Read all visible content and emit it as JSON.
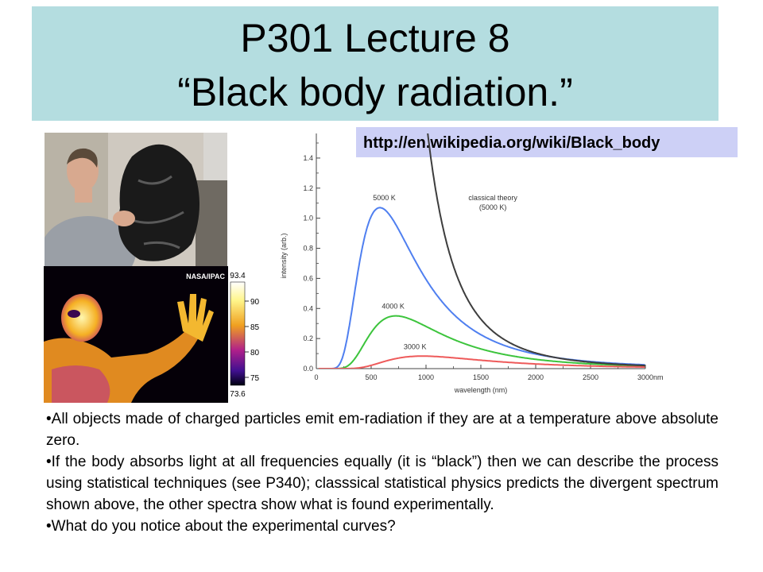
{
  "slide": {
    "title_line1": "P301 Lecture 8",
    "title_line2": "“Black body radiation.”",
    "source_url": "http://en.wikipedia.org/wiki/Black_body",
    "bullets": [
      "•All objects made of charged particles emit em-radiation if they are at a temperature above absolute zero.",
      "•If the body absorbs light at all frequencies equally (it is “black”) then we can describe the process using statistical techniques (see P340); classsical statistical physics predicts the divergent spectrum shown above, the other spectra show what is found experimentally.",
      "•What do you notice about the experimental curves?"
    ]
  },
  "images": {
    "photo_caption": "NASA/IPAC",
    "scale_max": "93.4",
    "scale_min": "73.6",
    "scale_ticks": [
      "90",
      "85",
      "80",
      "75"
    ]
  },
  "chart_data": {
    "type": "line",
    "xlabel": "wavelength (nm)",
    "ylabel": "intensity (arb.)",
    "xlim": [
      0,
      3000
    ],
    "ylim": [
      0,
      1.5
    ],
    "x_tick_labels": [
      "0",
      "500",
      "1000",
      "1500",
      "2000",
      "2500",
      "3000nm"
    ],
    "y_tick_labels": [
      "0.0",
      "0.2",
      "0.4",
      "0.6",
      "0.8",
      "1.0",
      "1.2",
      "1.4"
    ],
    "grid": false,
    "series": [
      {
        "name": "5000 K",
        "color": "#4f7ff0",
        "temperature_K": 5000,
        "peak_y": 1.07,
        "peak_x": 580
      },
      {
        "name": "4000 K",
        "color": "#3cc43c",
        "temperature_K": 4000,
        "peak_y": 0.35,
        "peak_x": 725
      },
      {
        "name": "3000 K",
        "color": "#ee5a5a",
        "temperature_K": 3000,
        "peak_y": 0.087,
        "peak_x": 966
      },
      {
        "name": "classical theory\n(5000 K)",
        "color": "#3d3d3d",
        "temperature_K": 5000,
        "model": "rayleigh-jeans"
      }
    ]
  },
  "colors": {
    "title_bg": "#b4dde0",
    "url_bg": "#cdd0f6"
  }
}
